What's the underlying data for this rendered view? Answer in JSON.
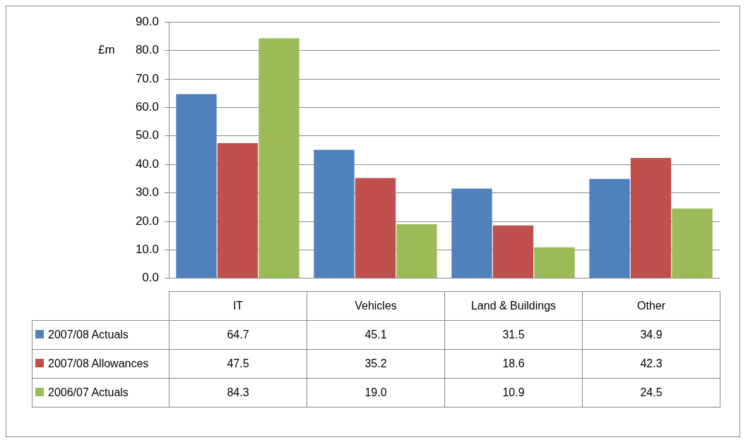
{
  "chart_data": {
    "type": "bar",
    "ylabel": "£m",
    "categories": [
      "IT",
      "Vehicles",
      "Land & Buildings",
      "Other"
    ],
    "series": [
      {
        "name": "2007/08 Actuals",
        "color": "#4f81bd",
        "values": [
          64.7,
          45.1,
          31.5,
          34.9
        ],
        "value_labels": [
          "64.7",
          "45.1",
          "31.5",
          "34.9"
        ]
      },
      {
        "name": "2007/08 Allowances",
        "color": "#c0504d",
        "values": [
          47.5,
          35.2,
          18.6,
          42.3
        ],
        "value_labels": [
          "47.5",
          "35.2",
          "18.6",
          "42.3"
        ]
      },
      {
        "name": "2006/07 Actuals",
        "color": "#9bbb59",
        "values": [
          84.3,
          19.0,
          10.9,
          24.5
        ],
        "value_labels": [
          "84.3",
          "19.0",
          "10.9",
          "24.5"
        ]
      }
    ],
    "ylim": [
      0,
      90
    ],
    "yticks": [
      {
        "value": 0,
        "label": "0.0"
      },
      {
        "value": 10,
        "label": "10.0"
      },
      {
        "value": 20,
        "label": "20.0"
      },
      {
        "value": 30,
        "label": "30.0"
      },
      {
        "value": 40,
        "label": "40.0"
      },
      {
        "value": 50,
        "label": "50.0"
      },
      {
        "value": 60,
        "label": "60.0"
      },
      {
        "value": 70,
        "label": "70.0"
      },
      {
        "value": 80,
        "label": "80.0"
      },
      {
        "value": 90,
        "label": "90.0"
      }
    ],
    "grid": "y",
    "legend": "bottom"
  }
}
